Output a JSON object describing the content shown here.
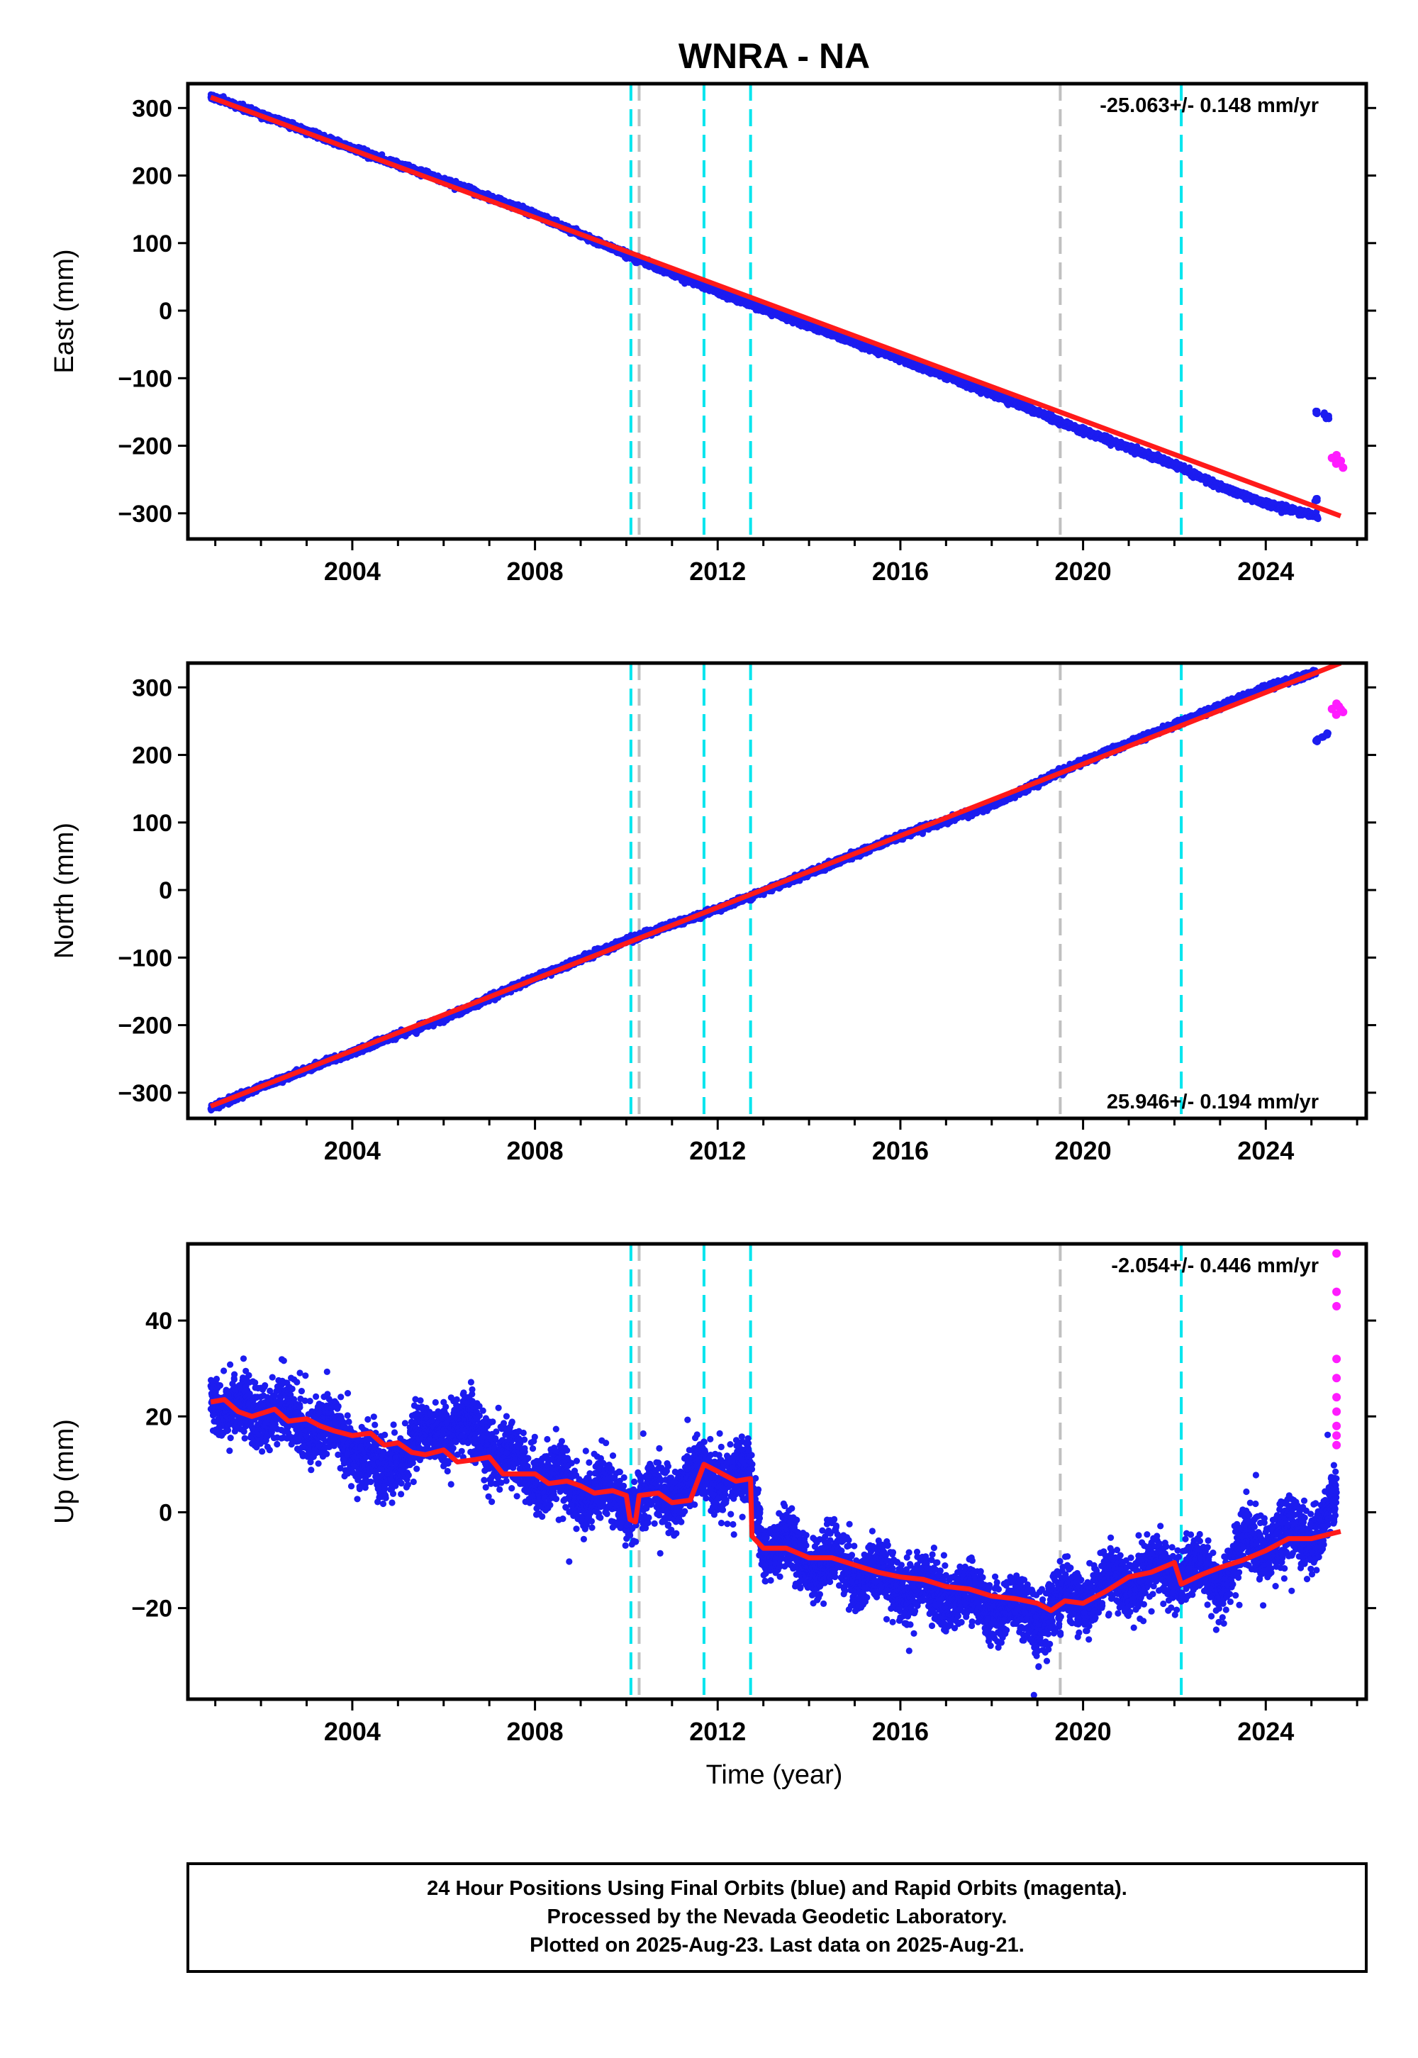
{
  "chart_data": {
    "type": "scatter",
    "title": "WNRA - NA",
    "xlabel": "Time (year)",
    "xlim": [
      2000.4,
      2026.2
    ],
    "x_ticks": [
      "2004",
      "2008",
      "2012",
      "2016",
      "2020",
      "2024"
    ],
    "x_tick_values": [
      2004,
      2008,
      2012,
      2016,
      2020,
      2024
    ],
    "first_data_year": 2000.9,
    "last_data_year": 2025.64,
    "reference_lines": [
      {
        "x": 2010.1,
        "color": "#00e5ee"
      },
      {
        "x": 2010.28,
        "color": "#c0c0c0"
      },
      {
        "x": 2011.7,
        "color": "#00e5ee"
      },
      {
        "x": 2012.72,
        "color": "#00e5ee"
      },
      {
        "x": 2019.5,
        "color": "#c0c0c0"
      },
      {
        "x": 2022.15,
        "color": "#00e5ee"
      }
    ],
    "panels": [
      {
        "name": "east",
        "ylabel": "East (mm)",
        "ylim": [
          -338,
          336
        ],
        "y_ticks": [
          "300",
          "200",
          "100",
          "0",
          "−100",
          "−200",
          "−300"
        ],
        "y_tick_values": [
          300,
          200,
          100,
          0,
          -100,
          -200,
          -300
        ],
        "rate_label": "-25.063+/- 0.148 mm/yr",
        "rate_label_position": "top-right",
        "final_orbits": [
          [
            2000.9,
            317
          ],
          [
            2002.0,
            291
          ],
          [
            2004.0,
            240
          ],
          [
            2006.0,
            193
          ],
          [
            2008.0,
            143
          ],
          [
            2010.0,
            83
          ],
          [
            2011.0,
            55
          ],
          [
            2012.0,
            28
          ],
          [
            2013.0,
            2
          ],
          [
            2014.0,
            -22
          ],
          [
            2016.0,
            -72
          ],
          [
            2018.0,
            -122
          ],
          [
            2019.5,
            -165
          ],
          [
            2020.0,
            -178
          ],
          [
            2022.0,
            -228
          ],
          [
            2023.0,
            -260
          ],
          [
            2024.0,
            -286
          ],
          [
            2025.0,
            -302
          ],
          [
            2025.15,
            -306
          ]
        ],
        "final_orbits_offset": [
          [
            2025.1,
            -280
          ],
          [
            2025.12,
            -150
          ],
          [
            2025.3,
            -155
          ],
          [
            2025.35,
            -158
          ]
        ],
        "rapid_orbits": [
          [
            2025.45,
            -218
          ],
          [
            2025.55,
            -214
          ],
          [
            2025.6,
            -224
          ]
        ],
        "model": [
          [
            2000.9,
            316
          ],
          [
            2025.64,
            -304
          ]
        ]
      },
      {
        "name": "north",
        "ylabel": "North (mm)",
        "ylim": [
          -338,
          336
        ],
        "y_ticks": [
          "300",
          "200",
          "100",
          "0",
          "−100",
          "−200",
          "−300"
        ],
        "y_tick_values": [
          300,
          200,
          100,
          0,
          -100,
          -200,
          -300
        ],
        "rate_label": "25.946+/- 0.194 mm/yr",
        "rate_label_position": "bottom-right",
        "final_orbits": [
          [
            2000.9,
            -322
          ],
          [
            2002.0,
            -292
          ],
          [
            2004.0,
            -240
          ],
          [
            2006.0,
            -190
          ],
          [
            2008.0,
            -130
          ],
          [
            2010.0,
            -75
          ],
          [
            2012.0,
            -28
          ],
          [
            2013.0,
            -2
          ],
          [
            2014.0,
            25
          ],
          [
            2016.0,
            80
          ],
          [
            2018.0,
            125
          ],
          [
            2019.5,
            175
          ],
          [
            2020.0,
            190
          ],
          [
            2022.0,
            245
          ],
          [
            2024.0,
            300
          ],
          [
            2025.1,
            322
          ]
        ],
        "final_orbits_offset": [
          [
            2025.12,
            222
          ],
          [
            2025.25,
            226
          ],
          [
            2025.35,
            230
          ]
        ],
        "rapid_orbits": [
          [
            2025.45,
            268
          ],
          [
            2025.55,
            276
          ],
          [
            2025.6,
            272
          ]
        ],
        "model": [
          [
            2000.9,
            -320
          ],
          [
            2025.64,
            336
          ]
        ]
      },
      {
        "name": "up",
        "ylabel": "Up (mm)",
        "ylim": [
          -39,
          56
        ],
        "y_ticks": [
          "40",
          "20",
          "0",
          "−20"
        ],
        "y_tick_values": [
          40,
          20,
          0,
          -20
        ],
        "rate_label": "-2.054+/- 0.446 mm/yr",
        "rate_label_position": "top-right",
        "final_orbits": [
          [
            2000.9,
            26
          ],
          [
            2001.5,
            20
          ],
          [
            2002.0,
            22
          ],
          [
            2003.0,
            18
          ],
          [
            2004.0,
            15
          ],
          [
            2004.7,
            6
          ],
          [
            2005.0,
            12
          ],
          [
            2005.5,
            15
          ],
          [
            2006.0,
            18
          ],
          [
            2006.5,
            17
          ],
          [
            2007.0,
            14
          ],
          [
            2007.5,
            10
          ],
          [
            2008.0,
            8
          ],
          [
            2009.0,
            5
          ],
          [
            2010.0,
            2
          ],
          [
            2010.5,
            3
          ],
          [
            2011.0,
            4
          ],
          [
            2011.7,
            8
          ],
          [
            2012.0,
            8
          ],
          [
            2012.7,
            7
          ],
          [
            2013.0,
            -6
          ],
          [
            2014.0,
            -10
          ],
          [
            2015.0,
            -12
          ],
          [
            2016.0,
            -15
          ],
          [
            2017.0,
            -17
          ],
          [
            2018.0,
            -19
          ],
          [
            2019.0,
            -22
          ],
          [
            2019.5,
            -19
          ],
          [
            2020.0,
            -17
          ],
          [
            2021.0,
            -14
          ],
          [
            2022.0,
            -12
          ],
          [
            2023.0,
            -14
          ],
          [
            2023.5,
            -8
          ],
          [
            2024.0,
            -6
          ],
          [
            2025.0,
            -4
          ],
          [
            2025.55,
            2
          ]
        ],
        "rapid_orbits": [
          [
            2025.55,
            54
          ],
          [
            2025.55,
            46
          ],
          [
            2025.55,
            43
          ],
          [
            2025.55,
            32
          ],
          [
            2025.55,
            28
          ],
          [
            2025.55,
            24
          ],
          [
            2025.55,
            21
          ],
          [
            2025.55,
            18
          ],
          [
            2025.55,
            16
          ],
          [
            2025.55,
            14
          ]
        ],
        "model": [
          [
            2000.9,
            23
          ],
          [
            2001.2,
            23.5
          ],
          [
            2001.5,
            21
          ],
          [
            2001.8,
            20
          ],
          [
            2002.3,
            21.5
          ],
          [
            2002.6,
            19
          ],
          [
            2003.0,
            19.5
          ],
          [
            2003.3,
            18
          ],
          [
            2003.6,
            17
          ],
          [
            2004.0,
            16
          ],
          [
            2004.4,
            16.5
          ],
          [
            2004.7,
            14
          ],
          [
            2005.0,
            14.5
          ],
          [
            2005.3,
            12.5
          ],
          [
            2005.6,
            12
          ],
          [
            2006.0,
            13
          ],
          [
            2006.3,
            10.5
          ],
          [
            2006.7,
            11
          ],
          [
            2007.0,
            11.5
          ],
          [
            2007.3,
            8
          ],
          [
            2007.7,
            8
          ],
          [
            2008.0,
            8
          ],
          [
            2008.3,
            6
          ],
          [
            2008.7,
            6.5
          ],
          [
            2009.0,
            5.5
          ],
          [
            2009.3,
            4
          ],
          [
            2009.7,
            4.5
          ],
          [
            2010.0,
            3.5
          ],
          [
            2010.08,
            -1.5
          ],
          [
            2010.2,
            -2
          ],
          [
            2010.28,
            3.5
          ],
          [
            2010.7,
            4
          ],
          [
            2011.0,
            2
          ],
          [
            2011.4,
            2.5
          ],
          [
            2011.7,
            10
          ],
          [
            2012.0,
            8.5
          ],
          [
            2012.4,
            6.5
          ],
          [
            2012.72,
            7
          ],
          [
            2012.75,
            -5
          ],
          [
            2013.0,
            -7.5
          ],
          [
            2013.5,
            -7.5
          ],
          [
            2014.0,
            -9.5
          ],
          [
            2014.5,
            -9.5
          ],
          [
            2015.0,
            -11
          ],
          [
            2015.5,
            -12.5
          ],
          [
            2016.0,
            -13.5
          ],
          [
            2016.5,
            -14
          ],
          [
            2017.0,
            -15.5
          ],
          [
            2017.5,
            -16
          ],
          [
            2018.0,
            -17.5
          ],
          [
            2018.5,
            -18
          ],
          [
            2019.0,
            -19
          ],
          [
            2019.3,
            -20.5
          ],
          [
            2019.6,
            -18.5
          ],
          [
            2020.0,
            -19
          ],
          [
            2020.5,
            -16.5
          ],
          [
            2021.0,
            -13.5
          ],
          [
            2021.5,
            -12.5
          ],
          [
            2022.0,
            -10.5
          ],
          [
            2022.15,
            -15
          ],
          [
            2022.6,
            -13
          ],
          [
            2023.0,
            -11.5
          ],
          [
            2023.5,
            -10
          ],
          [
            2024.0,
            -8
          ],
          [
            2024.5,
            -5.5
          ],
          [
            2025.0,
            -5.5
          ],
          [
            2025.64,
            -4
          ]
        ]
      }
    ],
    "series_colors": {
      "final_orbits": "#1c1cf0",
      "rapid_orbits": "#ff1cff",
      "model": "#ff1a1a"
    }
  },
  "footer": {
    "lines": [
      "24 Hour Positions Using Final Orbits (blue) and Rapid Orbits (magenta).",
      "Processed by the Nevada Geodetic Laboratory.",
      "Plotted on 2025-Aug-23. Last data on 2025-Aug-21."
    ]
  }
}
